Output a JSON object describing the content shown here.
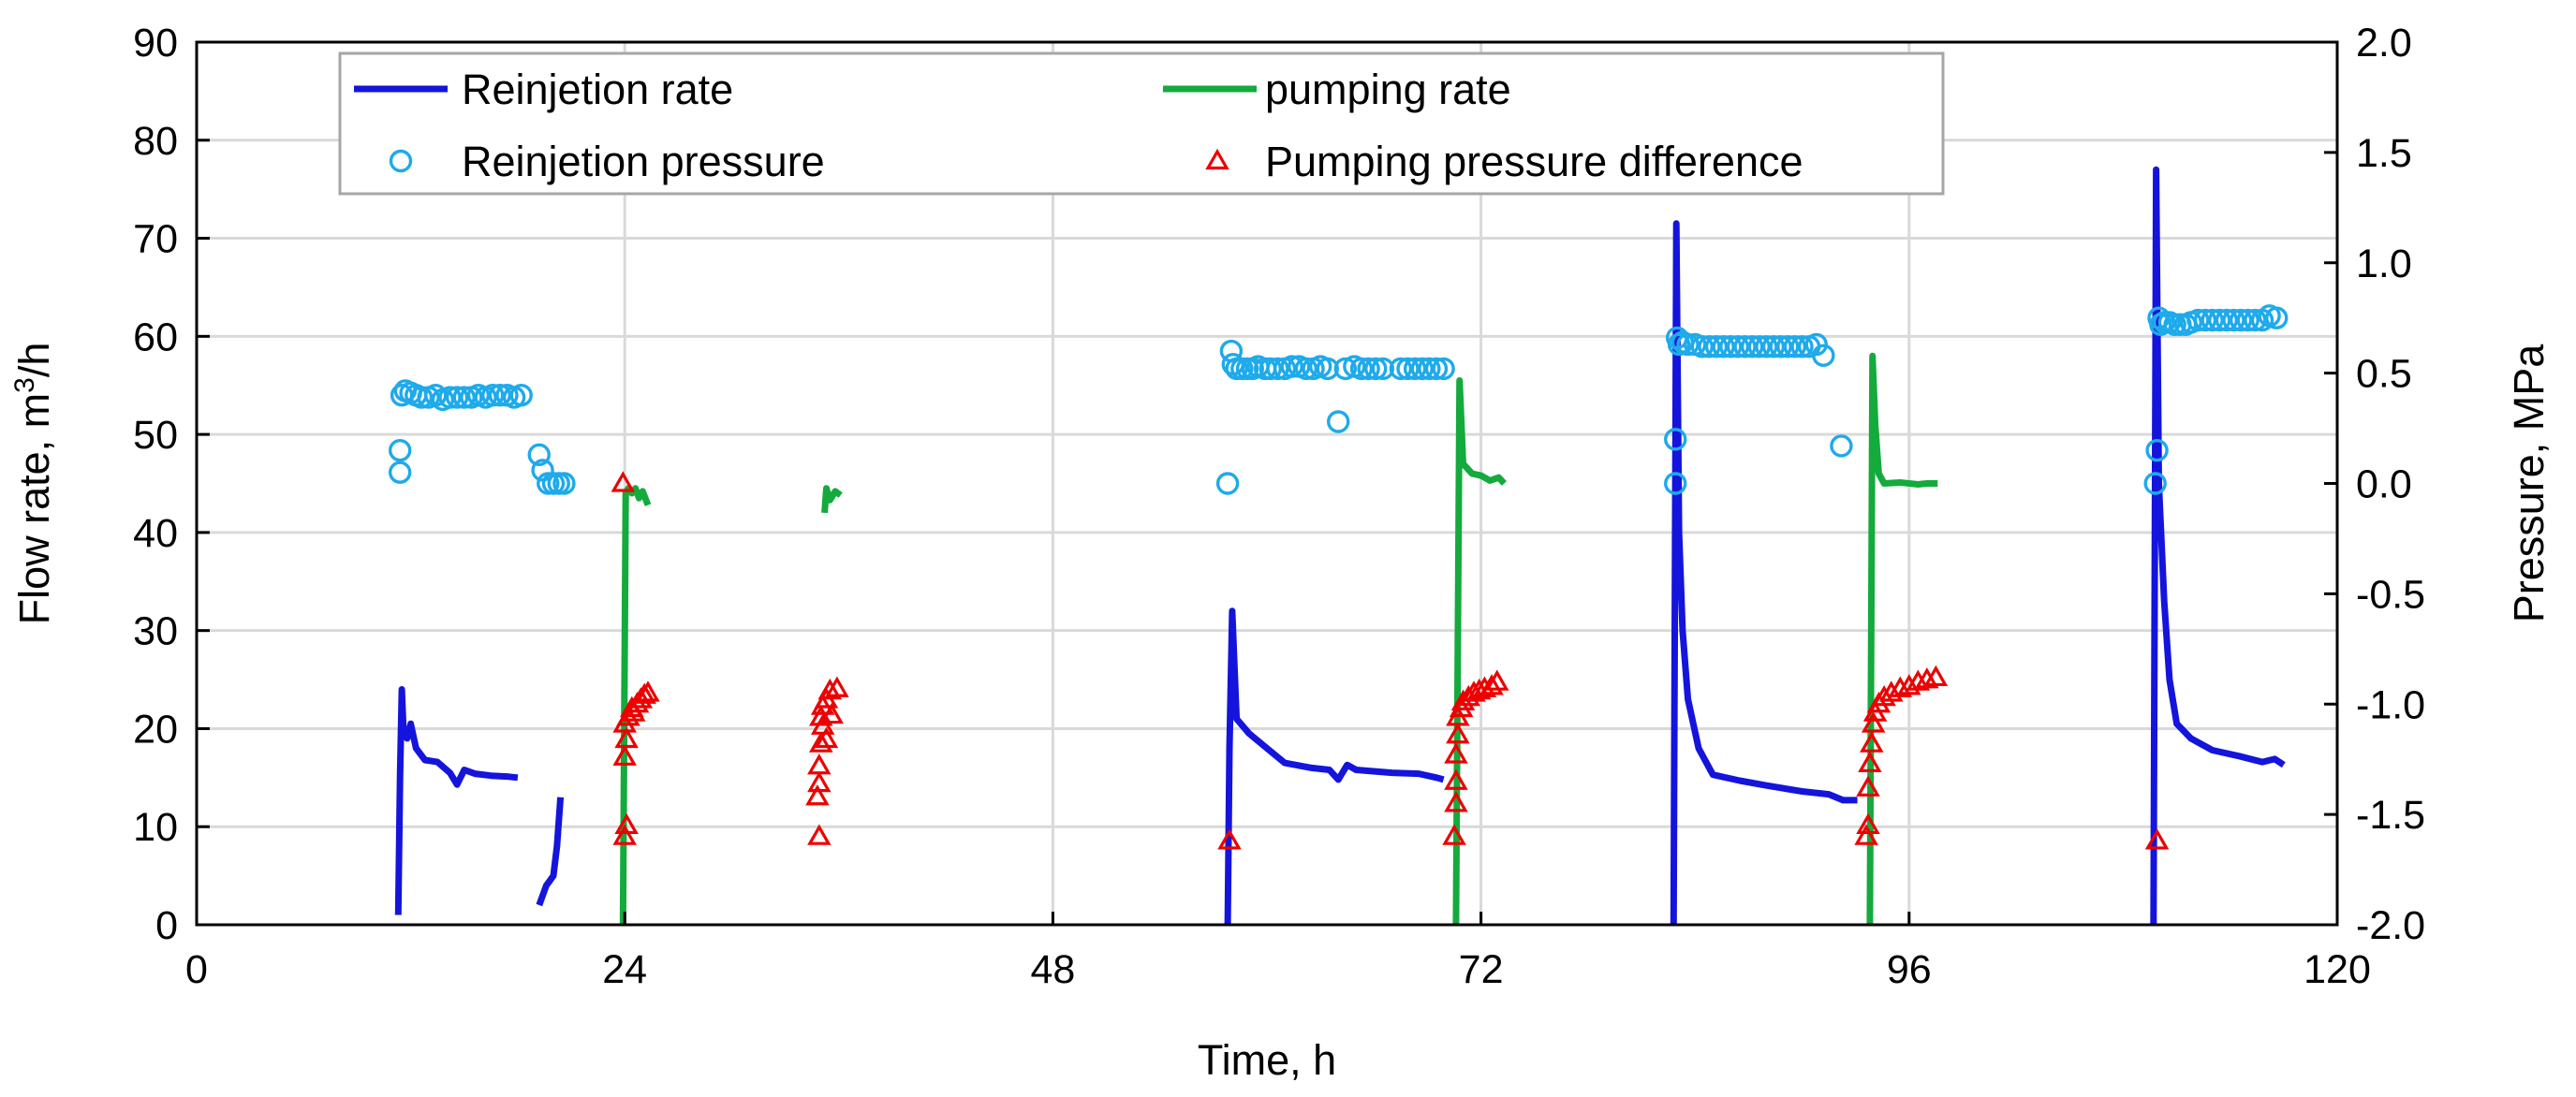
{
  "chart_data": {
    "type": "line",
    "title": "",
    "xlabel": "Time, h",
    "ylabel_left_main": "Flow rate, m",
    "ylabel_left_sup": "3",
    "ylabel_left_tail": "/h",
    "ylabel_right": "Pressure, MPa",
    "xlim": [
      0,
      120
    ],
    "ylim_left": [
      0,
      90
    ],
    "ylim_right": [
      -2.0,
      2.0
    ],
    "grid": true,
    "legend_position": "top-left inside plot",
    "x_ticks": [
      0,
      24,
      48,
      72,
      96,
      120
    ],
    "x_tick_labels": [
      "0",
      "24",
      "48",
      "72",
      "96",
      "120"
    ],
    "y_left_ticks": [
      0,
      10,
      20,
      30,
      40,
      50,
      60,
      70,
      80,
      90
    ],
    "y_left_tick_labels": [
      "0",
      "10",
      "20",
      "30",
      "40",
      "50",
      "60",
      "70",
      "80",
      "90"
    ],
    "y_right_ticks": [
      -2.0,
      -1.5,
      -1.0,
      -0.5,
      0.0,
      0.5,
      1.0,
      1.5,
      2.0
    ],
    "y_right_tick_labels": [
      "-2.0",
      "-1.5",
      "-1.0",
      "-0.5",
      "0.0",
      "0.5",
      "1.0",
      "1.5",
      "2.0"
    ],
    "colors": {
      "reinjection_rate": "#1414dc",
      "pumping_rate": "#14aa3c",
      "reinjection_pressure": "#1eaaeb",
      "pumping_pressure_difference": "#ee0000",
      "grid": "#d9d9d9",
      "axis": "#000000"
    },
    "series": [
      {
        "name": "Reinjetion rate",
        "key": "reinjection_rate",
        "axis": "left",
        "kind": "line",
        "segments": [
          [
            [
              11.3,
              1
            ],
            [
              11.4,
              15
            ],
            [
              11.5,
              24
            ],
            [
              11.6,
              19.5
            ],
            [
              11.8,
              19
            ],
            [
              12.0,
              20.5
            ],
            [
              12.3,
              18
            ],
            [
              12.8,
              16.8
            ],
            [
              13.5,
              16.6
            ],
            [
              14.2,
              15.5
            ],
            [
              14.6,
              14.3
            ],
            [
              15.0,
              15.8
            ],
            [
              15.6,
              15.4
            ],
            [
              16.5,
              15.2
            ],
            [
              17.5,
              15.1
            ],
            [
              18.0,
              15.0
            ]
          ],
          [
            [
              19.2,
              2
            ],
            [
              19.4,
              3
            ],
            [
              19.6,
              4
            ],
            [
              19.8,
              4.5
            ],
            [
              20.0,
              5
            ],
            [
              20.2,
              8
            ],
            [
              20.4,
              13
            ]
          ],
          [
            [
              57.8,
              0
            ],
            [
              57.9,
              18
            ],
            [
              58.05,
              32
            ],
            [
              58.3,
              21
            ],
            [
              59.0,
              19.5
            ],
            [
              60.0,
              18
            ],
            [
              61.0,
              16.5
            ],
            [
              62.5,
              16.0
            ],
            [
              63.5,
              15.8
            ],
            [
              64.0,
              14.8
            ],
            [
              64.5,
              16.3
            ],
            [
              65.0,
              15.8
            ],
            [
              67.0,
              15.5
            ],
            [
              68.5,
              15.4
            ],
            [
              69.5,
              15.0
            ],
            [
              69.9,
              14.8
            ]
          ],
          [
            [
              82.8,
              0
            ],
            [
              82.95,
              71.5
            ],
            [
              83.1,
              40
            ],
            [
              83.3,
              30
            ],
            [
              83.6,
              23
            ],
            [
              84.2,
              18
            ],
            [
              85.0,
              15.3
            ],
            [
              86.5,
              14.7
            ],
            [
              88.0,
              14.2
            ],
            [
              90.0,
              13.6
            ],
            [
              91.5,
              13.3
            ],
            [
              92.3,
              12.7
            ],
            [
              93.1,
              12.7
            ]
          ],
          [
            [
              109.7,
              0
            ],
            [
              109.85,
              77
            ],
            [
              110.0,
              45
            ],
            [
              110.3,
              33
            ],
            [
              110.6,
              25
            ],
            [
              111.0,
              20.5
            ],
            [
              111.8,
              19.0
            ],
            [
              113.0,
              17.8
            ],
            [
              114.5,
              17.2
            ],
            [
              115.8,
              16.6
            ],
            [
              116.5,
              16.9
            ],
            [
              117.0,
              16.3
            ]
          ]
        ]
      },
      {
        "name": "pumping rate",
        "key": "pumping_rate",
        "axis": "left",
        "kind": "line",
        "segments": [
          [
            [
              23.9,
              0
            ],
            [
              24.05,
              44
            ],
            [
              24.2,
              44.5
            ],
            [
              24.4,
              44
            ],
            [
              24.6,
              44.5
            ],
            [
              24.8,
              43.5
            ],
            [
              25.0,
              44.2
            ],
            [
              25.3,
              42.8
            ]
          ],
          [
            [
              35.2,
              42
            ],
            [
              35.3,
              44.5
            ],
            [
              35.5,
              43.3
            ],
            [
              35.8,
              44.2
            ],
            [
              36.1,
              43.8
            ]
          ],
          [
            [
              70.6,
              0
            ],
            [
              70.8,
              55.5
            ],
            [
              71.0,
              47
            ],
            [
              71.5,
              46
            ],
            [
              72.0,
              45.8
            ],
            [
              72.5,
              45.3
            ],
            [
              73.0,
              45.6
            ],
            [
              73.3,
              45.0
            ]
          ],
          [
            [
              93.8,
              0
            ],
            [
              93.95,
              58
            ],
            [
              94.1,
              51
            ],
            [
              94.3,
              46
            ],
            [
              94.6,
              45.0
            ],
            [
              95.5,
              45.1
            ],
            [
              96.5,
              44.9
            ],
            [
              97.0,
              45.0
            ],
            [
              97.6,
              45.0
            ]
          ]
        ]
      },
      {
        "name": "Reinjetion pressure",
        "key": "reinjection_pressure",
        "axis": "right",
        "kind": "marker",
        "marker": "circle",
        "points": [
          [
            11.4,
            0.05
          ],
          [
            11.4,
            0.15
          ],
          [
            11.5,
            0.4
          ],
          [
            11.7,
            0.42
          ],
          [
            12.0,
            0.41
          ],
          [
            12.3,
            0.4
          ],
          [
            12.6,
            0.39
          ],
          [
            13.0,
            0.39
          ],
          [
            13.4,
            0.4
          ],
          [
            13.8,
            0.38
          ],
          [
            14.2,
            0.39
          ],
          [
            14.6,
            0.39
          ],
          [
            15.0,
            0.39
          ],
          [
            15.4,
            0.39
          ],
          [
            15.8,
            0.4
          ],
          [
            16.2,
            0.39
          ],
          [
            16.6,
            0.4
          ],
          [
            17.0,
            0.4
          ],
          [
            17.4,
            0.4
          ],
          [
            17.8,
            0.39
          ],
          [
            18.2,
            0.4
          ],
          [
            19.2,
            0.13
          ],
          [
            19.4,
            0.06
          ],
          [
            19.7,
            0.0
          ],
          [
            20.0,
            0.0
          ],
          [
            20.3,
            0.0
          ],
          [
            20.6,
            0.0
          ],
          [
            57.8,
            0.0
          ],
          [
            58.0,
            0.6
          ],
          [
            58.1,
            0.54
          ],
          [
            58.3,
            0.52
          ],
          [
            58.6,
            0.52
          ],
          [
            58.9,
            0.52
          ],
          [
            59.2,
            0.52
          ],
          [
            59.5,
            0.53
          ],
          [
            59.9,
            0.52
          ],
          [
            60.2,
            0.52
          ],
          [
            60.6,
            0.52
          ],
          [
            61.0,
            0.52
          ],
          [
            61.4,
            0.53
          ],
          [
            61.8,
            0.53
          ],
          [
            62.2,
            0.52
          ],
          [
            62.6,
            0.52
          ],
          [
            63.0,
            0.53
          ],
          [
            63.4,
            0.52
          ],
          [
            64.0,
            0.28
          ],
          [
            64.4,
            0.52
          ],
          [
            64.9,
            0.53
          ],
          [
            65.3,
            0.52
          ],
          [
            65.7,
            0.52
          ],
          [
            66.1,
            0.52
          ],
          [
            66.5,
            0.52
          ],
          [
            67.5,
            0.52
          ],
          [
            67.9,
            0.52
          ],
          [
            68.3,
            0.52
          ],
          [
            68.7,
            0.52
          ],
          [
            69.1,
            0.52
          ],
          [
            69.5,
            0.52
          ],
          [
            69.9,
            0.52
          ],
          [
            82.9,
            0.0
          ],
          [
            82.9,
            0.2
          ],
          [
            83.0,
            0.66
          ],
          [
            83.1,
            0.63
          ],
          [
            83.3,
            0.64
          ],
          [
            83.6,
            0.63
          ],
          [
            84.0,
            0.63
          ],
          [
            84.4,
            0.62
          ],
          [
            84.8,
            0.62
          ],
          [
            85.2,
            0.62
          ],
          [
            85.6,
            0.62
          ],
          [
            86.0,
            0.62
          ],
          [
            86.4,
            0.62
          ],
          [
            86.8,
            0.62
          ],
          [
            87.2,
            0.62
          ],
          [
            87.6,
            0.62
          ],
          [
            88.0,
            0.62
          ],
          [
            88.4,
            0.62
          ],
          [
            88.8,
            0.62
          ],
          [
            89.2,
            0.62
          ],
          [
            89.6,
            0.62
          ],
          [
            90.0,
            0.62
          ],
          [
            90.4,
            0.62
          ],
          [
            90.8,
            0.63
          ],
          [
            91.2,
            0.58
          ],
          [
            92.2,
            0.17
          ],
          [
            109.8,
            0.0
          ],
          [
            109.9,
            0.15
          ],
          [
            110.0,
            0.75
          ],
          [
            110.1,
            0.72
          ],
          [
            110.3,
            0.73
          ],
          [
            110.6,
            0.73
          ],
          [
            110.9,
            0.72
          ],
          [
            111.2,
            0.72
          ],
          [
            111.5,
            0.72
          ],
          [
            111.8,
            0.73
          ],
          [
            112.2,
            0.74
          ],
          [
            112.6,
            0.74
          ],
          [
            113.0,
            0.74
          ],
          [
            113.4,
            0.74
          ],
          [
            113.8,
            0.74
          ],
          [
            114.2,
            0.74
          ],
          [
            114.6,
            0.74
          ],
          [
            115.0,
            0.74
          ],
          [
            115.4,
            0.74
          ],
          [
            115.8,
            0.74
          ],
          [
            116.2,
            0.76
          ],
          [
            116.6,
            0.75
          ]
        ]
      },
      {
        "name": "Pumping pressure difference",
        "key": "pumping_pressure_difference",
        "axis": "right",
        "kind": "marker",
        "marker": "triangle",
        "points": [
          [
            23.9,
            0.0
          ],
          [
            24.0,
            -1.6
          ],
          [
            24.1,
            -1.55
          ],
          [
            24.0,
            -1.24
          ],
          [
            24.1,
            -1.16
          ],
          [
            24.0,
            -1.09
          ],
          [
            24.2,
            -1.06
          ],
          [
            24.4,
            -1.02
          ],
          [
            24.5,
            -1.04
          ],
          [
            24.7,
            -1.0
          ],
          [
            24.9,
            -0.98
          ],
          [
            25.1,
            -0.96
          ],
          [
            25.3,
            -0.95
          ],
          [
            34.9,
            -1.6
          ],
          [
            34.8,
            -1.42
          ],
          [
            34.9,
            -1.36
          ],
          [
            34.9,
            -1.28
          ],
          [
            35.0,
            -1.18
          ],
          [
            35.1,
            -1.1
          ],
          [
            35.0,
            -1.06
          ],
          [
            35.1,
            -1.01
          ],
          [
            35.3,
            -0.98
          ],
          [
            35.5,
            -0.94
          ],
          [
            35.3,
            -1.16
          ],
          [
            35.6,
            -1.05
          ],
          [
            35.9,
            -0.93
          ],
          [
            57.9,
            -1.62
          ],
          [
            70.5,
            -1.6
          ],
          [
            70.6,
            -1.45
          ],
          [
            70.6,
            -1.35
          ],
          [
            70.6,
            -1.23
          ],
          [
            70.7,
            -1.14
          ],
          [
            70.7,
            -1.06
          ],
          [
            70.9,
            -1.02
          ],
          [
            71.0,
            -0.99
          ],
          [
            71.3,
            -0.97
          ],
          [
            71.6,
            -0.95
          ],
          [
            71.9,
            -0.94
          ],
          [
            72.2,
            -0.93
          ],
          [
            72.6,
            -0.92
          ],
          [
            72.9,
            -0.9
          ],
          [
            93.6,
            -1.6
          ],
          [
            93.7,
            -1.55
          ],
          [
            93.7,
            -1.38
          ],
          [
            93.8,
            -1.27
          ],
          [
            93.9,
            -1.18
          ],
          [
            94.0,
            -1.09
          ],
          [
            94.1,
            -1.04
          ],
          [
            94.3,
            -1.0
          ],
          [
            94.6,
            -0.97
          ],
          [
            95.0,
            -0.95
          ],
          [
            95.5,
            -0.93
          ],
          [
            96.0,
            -0.92
          ],
          [
            96.5,
            -0.9
          ],
          [
            97.0,
            -0.89
          ],
          [
            97.5,
            -0.88
          ],
          [
            109.9,
            -1.62
          ]
        ]
      }
    ],
    "legend": [
      {
        "label": "Reinjetion rate",
        "key": "reinjection_rate",
        "symbol": "line"
      },
      {
        "label": "pumping rate",
        "key": "pumping_rate",
        "symbol": "line"
      },
      {
        "label": "Reinjetion pressure",
        "key": "reinjection_pressure",
        "symbol": "circle"
      },
      {
        "label": "Pumping pressure difference",
        "key": "pumping_pressure_difference",
        "symbol": "triangle"
      }
    ]
  }
}
